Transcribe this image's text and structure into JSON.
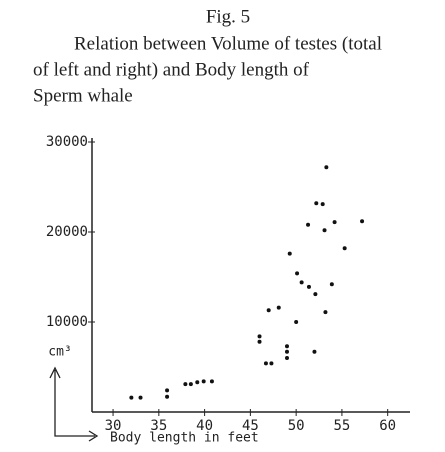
{
  "chart_data": {
    "type": "scatter",
    "title": "Fig. 5",
    "subtitle": [
      "Relation between Volume of testes (total",
      "of left and right) and Body length of",
      "Sperm whale"
    ],
    "x_label": "Body length in feet",
    "y_label": "cm³",
    "color": "#111111",
    "xlim": [
      27.7,
      62
    ],
    "xticks": [
      30,
      35,
      40,
      45,
      50,
      55,
      60
    ],
    "ylim": [
      0,
      30000
    ],
    "yticks": [
      10000,
      20000,
      30000
    ],
    "x": [
      32.0,
      33.0,
      35.9,
      35.9,
      37.9,
      38.5,
      39.2,
      39.9,
      40.8,
      46.0,
      46.0,
      46.7,
      47.3,
      47.0,
      48.1,
      49.0,
      49.0,
      49.0,
      49.3,
      50.0,
      50.1,
      50.6,
      51.3,
      51.4,
      52.0,
      52.1,
      52.2,
      52.9,
      53.1,
      53.2,
      53.3,
      53.9,
      54.2,
      55.3,
      57.2
    ],
    "values": [
      1600,
      1600,
      1700,
      2400,
      3100,
      3100,
      3300,
      3400,
      3400,
      7800,
      8400,
      5400,
      5400,
      11300,
      11600,
      6000,
      6700,
      7300,
      17600,
      10000,
      15400,
      14400,
      20800,
      13900,
      6700,
      13100,
      23200,
      23100,
      20200,
      11100,
      27200,
      14200,
      21100,
      18200,
      21200
    ]
  }
}
